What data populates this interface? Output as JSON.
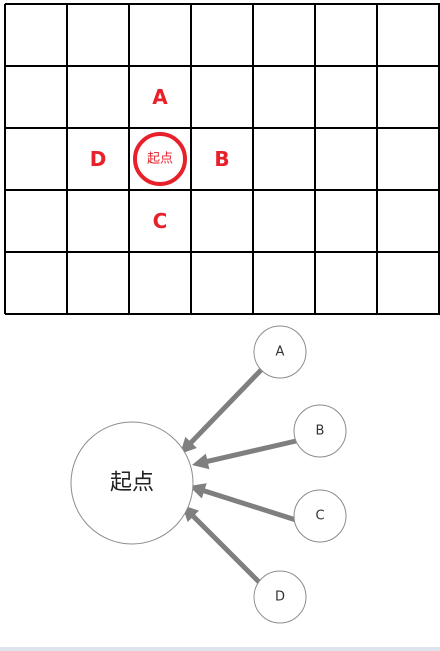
{
  "grid": {
    "rows": 5,
    "cols": 7,
    "start_cell": {
      "row": 2,
      "col": 2
    },
    "start_label": "起点",
    "neighbors": [
      {
        "label": "A",
        "row": 1,
        "col": 2
      },
      {
        "label": "B",
        "row": 2,
        "col": 3
      },
      {
        "label": "C",
        "row": 3,
        "col": 2
      },
      {
        "label": "D",
        "row": 2,
        "col": 1
      }
    ]
  },
  "graph": {
    "center_label": "起点",
    "nodes": [
      {
        "label": "A"
      },
      {
        "label": "B"
      },
      {
        "label": "C"
      },
      {
        "label": "D"
      }
    ],
    "edge_direction": "node-to-center"
  },
  "colors": {
    "grid_line": "#000000",
    "accent_red": "#e8202a",
    "arrow_gray": "#7f7f7f",
    "node_stroke": "#8c8c8c"
  }
}
